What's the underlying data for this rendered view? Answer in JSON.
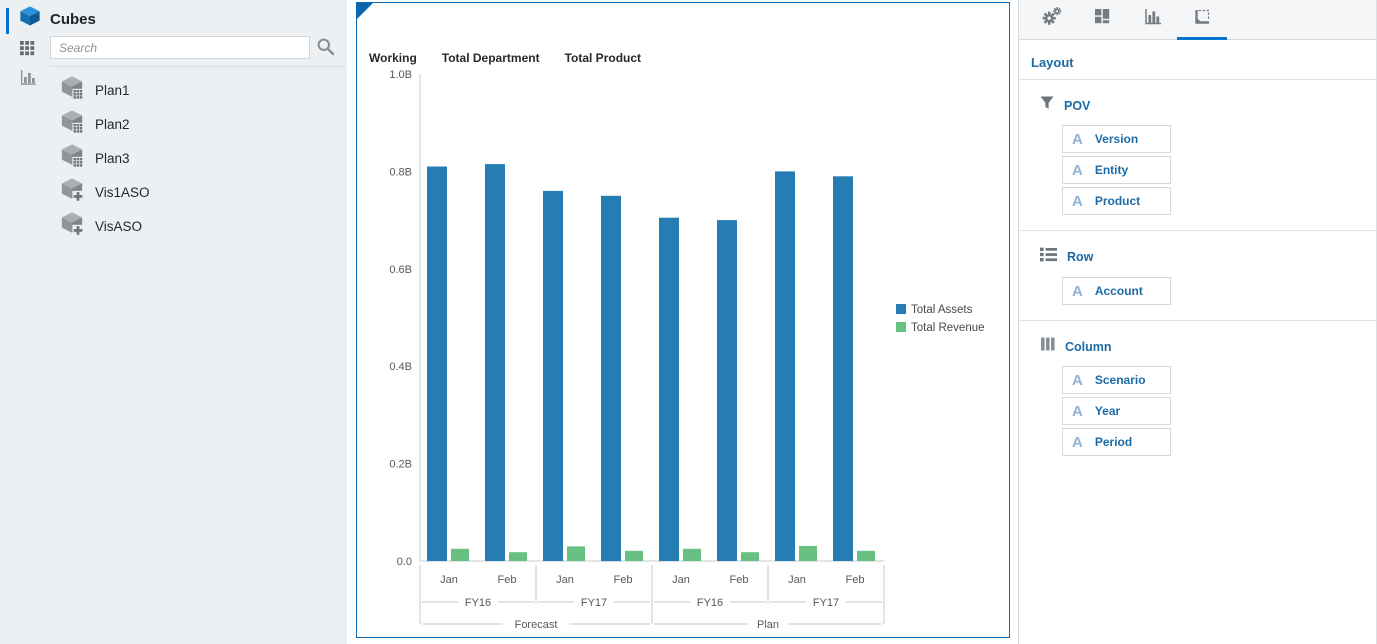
{
  "sidebar": {
    "title": "Cubes",
    "search": {
      "placeholder": "Search"
    },
    "cubes": [
      {
        "label": "Plan1",
        "icon": "cube-grid-icon"
      },
      {
        "label": "Plan2",
        "icon": "cube-grid-icon"
      },
      {
        "label": "Plan3",
        "icon": "cube-grid-icon"
      },
      {
        "label": "Vis1ASO",
        "icon": "cube-plus-icon"
      },
      {
        "label": "VisASO",
        "icon": "cube-plus-icon"
      }
    ]
  },
  "chart_header": {
    "crumbs": [
      "Working",
      "Total Department",
      "Total Product"
    ]
  },
  "chart_data": {
    "type": "bar",
    "title": "",
    "x": [
      "Jan",
      "Feb",
      "Jan",
      "Feb",
      "Jan",
      "Feb",
      "Jan",
      "Feb"
    ],
    "x_hierarchy": {
      "years": [
        {
          "label": "FY16",
          "span": 2
        },
        {
          "label": "FY17",
          "span": 2
        },
        {
          "label": "FY16",
          "span": 2
        },
        {
          "label": "FY17",
          "span": 2
        }
      ],
      "scenarios": [
        {
          "label": "Forecast",
          "span": 4
        },
        {
          "label": "Plan",
          "span": 4
        }
      ]
    },
    "series": [
      {
        "name": "Total Assets",
        "color": "#267db3",
        "values_billions": [
          0.81,
          0.815,
          0.76,
          0.75,
          0.705,
          0.7,
          0.8,
          0.79
        ]
      },
      {
        "name": "Total Revenue",
        "color": "#68c182",
        "values_billions": [
          0.025,
          0.018,
          0.03,
          0.021,
          0.025,
          0.018,
          0.031,
          0.021
        ]
      }
    ],
    "ylim": [
      0,
      1.0
    ],
    "yticks": [
      {
        "value": 1.0,
        "label": "1.0B"
      },
      {
        "value": 0.8,
        "label": "0.8B"
      },
      {
        "value": 0.6,
        "label": "0.6B"
      },
      {
        "value": 0.4,
        "label": "0.4B"
      },
      {
        "value": 0.2,
        "label": "0.2B"
      },
      {
        "value": 0.0,
        "label": "0.0"
      }
    ],
    "legend_position": "right",
    "grid": false
  },
  "right_panel": {
    "tabs": [
      {
        "icon": "gears-icon",
        "selected": false
      },
      {
        "icon": "tiles-icon",
        "selected": false
      },
      {
        "icon": "bar-chart-icon",
        "selected": false
      },
      {
        "icon": "layout-icon",
        "selected": true
      }
    ],
    "title": "Layout",
    "sections": [
      {
        "name": "POV",
        "icon": "funnel-icon",
        "items": [
          "Version",
          "Entity",
          "Product"
        ]
      },
      {
        "name": "Row",
        "icon": "rows-icon",
        "items": [
          "Account"
        ]
      },
      {
        "name": "Column",
        "icon": "columns-icon",
        "items": [
          "Scenario",
          "Year",
          "Period"
        ]
      }
    ]
  },
  "colors": {
    "accent": "#0572ce",
    "panel_border": "#0d6cb5",
    "series_assets": "#267db3",
    "series_revenue": "#68c182"
  }
}
